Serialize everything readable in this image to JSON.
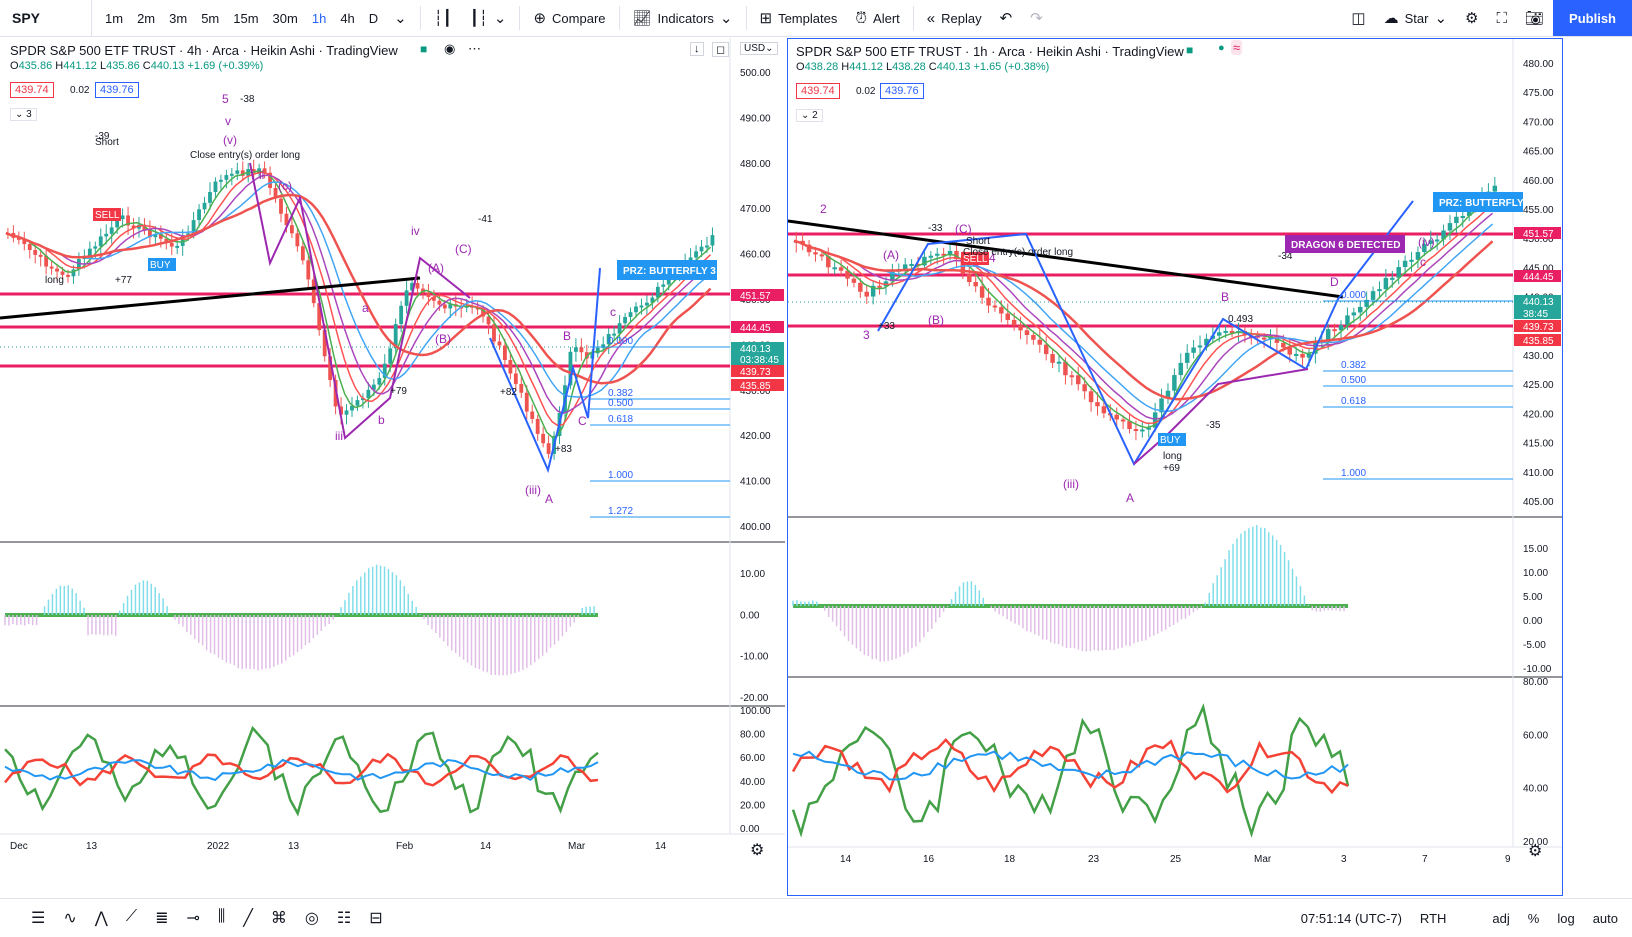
{
  "toolbar": {
    "symbol": "SPY",
    "timeframes": [
      "1m",
      "2m",
      "3m",
      "5m",
      "15m",
      "30m",
      "1h",
      "4h",
      "D"
    ],
    "active_timeframe": "1h",
    "compare_label": "Compare",
    "indicators_label": "Indicators",
    "templates_label": "Templates",
    "alert_label": "Alert",
    "replay_label": "Replay",
    "layout_label": "Star",
    "publish_label": "Publish"
  },
  "left_chart": {
    "title": "SPDR S&P 500 ETF TRUST · 4h · Arca · Heikin Ashi · TradingView",
    "ohlc": {
      "o": "435.86",
      "h": "441.12",
      "l": "435.86",
      "c": "440.13",
      "chg": "+1.69 (+0.39%)"
    },
    "bid": "439.74",
    "spread": "0.02",
    "ask": "439.76",
    "collapse_count": "3",
    "currency": "USD",
    "price_axis": [
      "500.00",
      "490.00",
      "480.00",
      "470.00",
      "460.00",
      "450.00",
      "440.00",
      "430.00",
      "420.00",
      "410.00",
      "400.00"
    ],
    "price_tags": [
      {
        "v": "451.57",
        "c": "#e91e63"
      },
      {
        "v": "444.45",
        "c": "#e91e63"
      },
      {
        "v": "440.13",
        "c": "#26a69a"
      },
      {
        "v": "03:38:45",
        "c": "#26a69a"
      },
      {
        "v": "439.73",
        "c": "#f23645"
      },
      {
        "v": "435.85",
        "c": "#f23645"
      }
    ],
    "osc_axis": [
      "10.00",
      "0.00",
      "-10.00",
      "-20.00"
    ],
    "rsi_axis": [
      "100.00",
      "80.00",
      "60.00",
      "40.00",
      "20.00",
      "0.00"
    ],
    "time_axis": [
      "Dec",
      "13",
      "2022",
      "13",
      "Feb",
      "14",
      "Mar",
      "14"
    ],
    "prz_label": "PRZ: BUTTERFLY 3",
    "fib_levels": [
      "0.000",
      "0.382",
      "0.500",
      "0.618",
      "1.000",
      "1.272"
    ],
    "wave_labels": [
      "5",
      "v",
      "(v)",
      "ii",
      "(c)",
      "iv",
      "(C)",
      "(A)",
      "(B)",
      "iii",
      "(iii)",
      "a",
      "b",
      "c",
      "A",
      "B",
      "C"
    ],
    "signals": [
      "SELL",
      "BUY",
      "long",
      "Short",
      "+77",
      "+79",
      "+82",
      "+83",
      "-38",
      "-39",
      "-41",
      "Close entry(s) order long"
    ]
  },
  "right_chart": {
    "title": "SPDR S&P 500 ETF TRUST · 1h · Arca · Heikin Ashi · TradingView",
    "ohlc": {
      "o": "438.28",
      "h": "441.12",
      "l": "438.28",
      "c": "440.13",
      "chg": "+1.65 (+0.38%)"
    },
    "bid": "439.74",
    "spread": "0.02",
    "ask": "439.76",
    "collapse_count": "2",
    "price_axis": [
      "480.00",
      "475.00",
      "470.00",
      "465.00",
      "460.00",
      "455.00",
      "450.00",
      "445.00",
      "440.00",
      "435.00",
      "430.00",
      "425.00",
      "420.00",
      "415.00",
      "410.00",
      "405.00"
    ],
    "price_tags": [
      {
        "v": "451.57",
        "c": "#e91e63"
      },
      {
        "v": "444.45",
        "c": "#e91e63"
      },
      {
        "v": "440.13",
        "c": "#26a69a"
      },
      {
        "v": "38:45",
        "c": "#26a69a"
      },
      {
        "v": "439.73",
        "c": "#f23645"
      },
      {
        "v": "435.85",
        "c": "#f23645"
      }
    ],
    "osc_axis": [
      "15.00",
      "10.00",
      "5.00",
      "0.00",
      "-5.00",
      "-10.00"
    ],
    "rsi_axis": [
      "80.00",
      "60.00",
      "40.00",
      "20.00"
    ],
    "time_axis": [
      "14",
      "16",
      "18",
      "23",
      "25",
      "Mar",
      "3",
      "7",
      "9"
    ],
    "prz_label": "PRZ: BUTTERFLY",
    "dragon_label": "DRAGON 6 DETECTED",
    "fib_levels": [
      "0.000",
      "0.382",
      "0.500",
      "0.618",
      "1.000"
    ],
    "wave_labels": [
      "2",
      "(C)",
      "(A)",
      "(B)",
      "(iii)",
      "(iv)",
      "c",
      "A",
      "B",
      "D",
      "3",
      "4"
    ],
    "signals": [
      "SELL",
      "BUY",
      "long",
      "Short",
      "+33",
      "+69",
      "-33",
      "-34",
      "-35",
      "0.493",
      "Close entry(s) order long"
    ]
  },
  "bottom": {
    "time": "07:51:14 (UTC-7)",
    "session": "RTH",
    "opts": [
      "adj",
      "%",
      "log",
      "auto"
    ]
  }
}
